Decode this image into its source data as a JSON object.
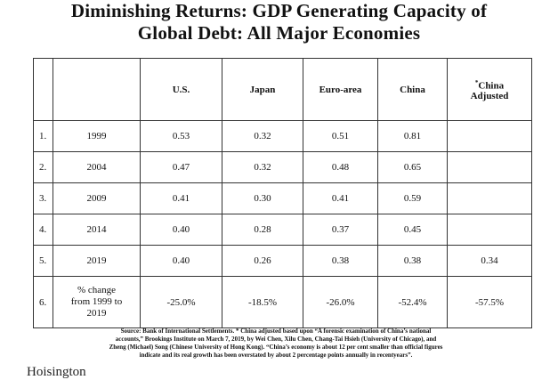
{
  "title": {
    "line1": "Diminishing Returns: GDP Generating Capacity of",
    "line2": "Global Debt: All Major Economies"
  },
  "table": {
    "headers": {
      "us": "U.S.",
      "japan": "Japan",
      "euro": "Euro-area",
      "china": "China",
      "china_adj_mark": "*",
      "china_adj_line1": "China",
      "china_adj_line2": "Adjusted"
    },
    "rows": [
      {
        "num": "1.",
        "year": "1999",
        "us": "0.53",
        "japan": "0.32",
        "euro": "0.51",
        "china": "0.81",
        "china_adj": ""
      },
      {
        "num": "2.",
        "year": "2004",
        "us": "0.47",
        "japan": "0.32",
        "euro": "0.48",
        "china": "0.65",
        "china_adj": ""
      },
      {
        "num": "3.",
        "year": "2009",
        "us": "0.41",
        "japan": "0.30",
        "euro": "0.41",
        "china": "0.59",
        "china_adj": ""
      },
      {
        "num": "4.",
        "year": "2014",
        "us": "0.40",
        "japan": "0.28",
        "euro": "0.37",
        "china": "0.45",
        "china_adj": ""
      },
      {
        "num": "5.",
        "year": "2019",
        "us": "0.40",
        "japan": "0.26",
        "euro": "0.38",
        "china": "0.38",
        "china_adj": "0.34"
      }
    ],
    "change_row": {
      "num": "6.",
      "label_line1": "% change",
      "label_line2": "from 1999 to",
      "label_line3": "2019",
      "us": "-25.0%",
      "japan": "-18.5%",
      "euro": "-26.0%",
      "china": "-52.4%",
      "china_adj": "-57.5%"
    }
  },
  "source": {
    "line1": "Source: Bank of International Settlements. * China adjusted based upon “A forensic examination of China’s national",
    "line2": "accounts,” Brookings Institute on March 7, 2019, by Wei Chen, Xilu Chen, Chang-Tai Hsieh (University of Chicago), and",
    "line3": "Zheng (Michael) Song (Chinese University of Hong Kong). “China’s economy is about 12 per cent smaller than official figures",
    "line4": "indicate and its real growth has been overstated by about 2 percentage points annually in recentyears”."
  },
  "logo": "Hoisington"
}
